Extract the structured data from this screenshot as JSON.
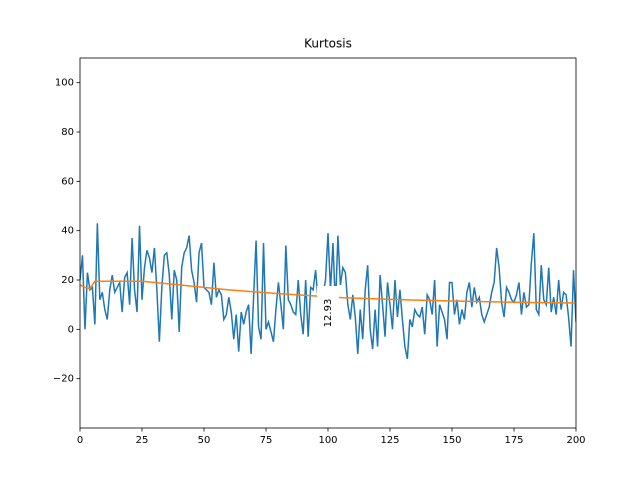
{
  "chart_data": {
    "type": "line",
    "title": "Kurtosis",
    "x": [
      0,
      1,
      2,
      3,
      4,
      5,
      6,
      7,
      8,
      9,
      10,
      11,
      12,
      13,
      14,
      15,
      16,
      17,
      18,
      19,
      20,
      21,
      22,
      23,
      24,
      25,
      26,
      27,
      28,
      29,
      30,
      31,
      32,
      33,
      34,
      35,
      36,
      37,
      38,
      39,
      40,
      41,
      42,
      43,
      44,
      45,
      46,
      47,
      48,
      49,
      50,
      51,
      52,
      53,
      54,
      55,
      56,
      57,
      58,
      59,
      60,
      61,
      62,
      63,
      64,
      65,
      66,
      67,
      68,
      69,
      70,
      71,
      72,
      73,
      74,
      75,
      76,
      77,
      78,
      79,
      80,
      81,
      82,
      83,
      84,
      85,
      86,
      87,
      88,
      89,
      90,
      91,
      92,
      93,
      94,
      95,
      96,
      97,
      98,
      99,
      100,
      101,
      102,
      103,
      104,
      105,
      106,
      107,
      108,
      109,
      110,
      111,
      112,
      113,
      114,
      115,
      116,
      117,
      118,
      119,
      120,
      121,
      122,
      123,
      124,
      125,
      126,
      127,
      128,
      129,
      130,
      131,
      132,
      133,
      134,
      135,
      136,
      137,
      138,
      139,
      140,
      141,
      142,
      143,
      144,
      145,
      146,
      147,
      148,
      149,
      150,
      151,
      152,
      153,
      154,
      155,
      156,
      157,
      158,
      159,
      160,
      161,
      162,
      163,
      164,
      165,
      166,
      167,
      168,
      169,
      170,
      171,
      172,
      173,
      174,
      175,
      176,
      177,
      178,
      179,
      180,
      181,
      182,
      183,
      184,
      185,
      186,
      187,
      188,
      189,
      190,
      191,
      192,
      193,
      194,
      195,
      196,
      197,
      198,
      199,
      200
    ],
    "series": [
      {
        "color": "#1f77b4",
        "values": [
          20,
          30,
          0,
          23,
          16,
          17,
          2,
          43,
          12,
          15,
          8,
          4,
          16,
          22,
          15,
          17,
          19,
          7,
          21,
          23,
          10,
          37,
          16,
          7,
          42,
          12,
          25,
          32,
          29,
          23,
          33,
          16,
          -5,
          17,
          30,
          31,
          22,
          4,
          24,
          20,
          -1,
          25,
          31,
          33,
          38,
          24,
          19,
          11,
          31,
          35,
          17,
          16,
          15,
          10,
          27,
          13,
          16,
          14,
          4,
          6,
          13,
          7,
          -4,
          6,
          -9,
          7,
          2,
          7,
          10,
          -10,
          13,
          36,
          1,
          -4,
          35,
          0,
          3,
          -1,
          -5,
          8,
          19,
          10,
          0,
          34,
          12,
          10,
          7,
          6,
          20,
          6,
          -2,
          20,
          -3,
          17,
          16,
          24,
          12,
          5,
          14,
          20,
          39,
          16,
          35,
          9,
          38,
          18,
          25,
          23,
          10,
          4,
          14,
          5,
          -10,
          8,
          -4,
          16,
          26,
          0,
          -8,
          8,
          -7,
          22,
          10,
          -3,
          19,
          10,
          0,
          20,
          5,
          16,
          4,
          -7,
          -12,
          4,
          1,
          8,
          6,
          5,
          9,
          -2,
          14,
          12,
          6,
          20,
          -7,
          10,
          7,
          4,
          -4,
          19,
          19,
          6,
          12,
          2,
          8,
          4,
          15,
          19,
          9,
          17,
          11,
          13,
          6,
          3,
          6,
          9,
          15,
          19,
          33,
          25,
          11,
          5,
          17,
          15,
          12,
          11,
          14,
          19,
          6,
          15,
          9,
          10,
          27,
          39,
          8,
          6,
          26,
          12,
          10,
          25,
          7,
          13,
          6,
          20,
          8,
          15,
          14,
          5,
          -7,
          24,
          3
        ]
      },
      {
        "color": "#ff7f0e",
        "x": [
          0,
          2,
          4,
          6,
          10,
          20,
          25,
          40,
          60,
          80,
          95,
          106,
          130,
          150,
          175,
          200
        ],
        "values": [
          18,
          17,
          16.5,
          19.5,
          19.5,
          19.5,
          19.5,
          18,
          16,
          14.5,
          13.5,
          12.8,
          12,
          11.5,
          11,
          10.7
        ]
      }
    ],
    "annotation": "12.93",
    "xlim": [
      0,
      200
    ],
    "ylim": [
      -40,
      110
    ],
    "xticks": [
      0,
      25,
      50,
      75,
      100,
      125,
      150,
      175,
      200
    ],
    "yticks": [
      {
        "value": -20,
        "label": "−20"
      },
      0,
      20,
      40,
      60,
      80,
      100
    ]
  }
}
